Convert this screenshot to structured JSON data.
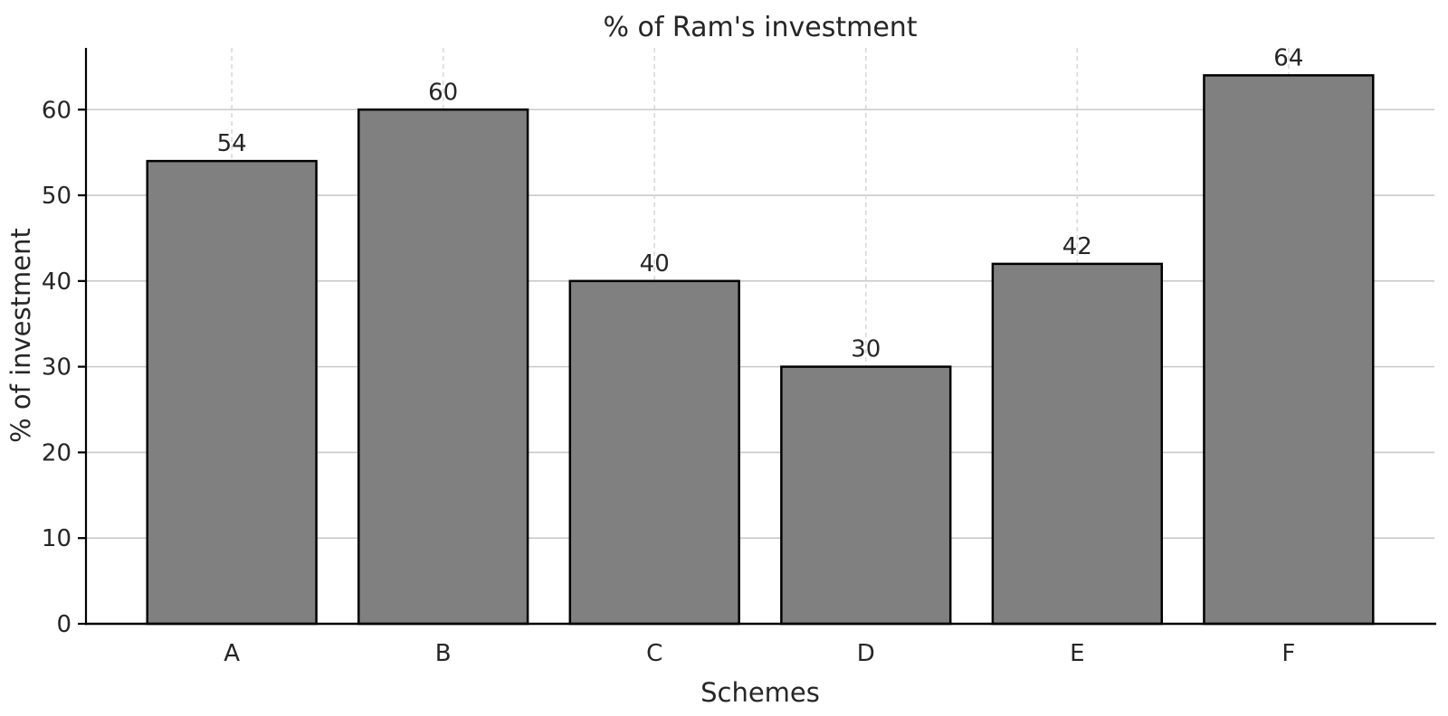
{
  "chart_data": {
    "type": "bar",
    "title": "% of Ram's investment",
    "xlabel": "Schemes",
    "ylabel": "% of investment",
    "categories": [
      "A",
      "B",
      "C",
      "D",
      "E",
      "F"
    ],
    "values": [
      54,
      60,
      40,
      30,
      42,
      64
    ],
    "yticks": [
      0,
      10,
      20,
      30,
      40,
      50,
      60
    ],
    "ylim": [
      0,
      67.2
    ],
    "xlim_units": [
      -0.69,
      5.69
    ],
    "bar_width_units": 0.8,
    "grid": {
      "horizontal_style": "solid",
      "vertical_style": "dashed",
      "horizontal_color": "#c9c9c9",
      "vertical_color": "#d9d9d9"
    },
    "colors": {
      "bar_fill": "#808080",
      "bar_edge": "#000000",
      "spine": "#000000",
      "text": "#262626"
    }
  }
}
